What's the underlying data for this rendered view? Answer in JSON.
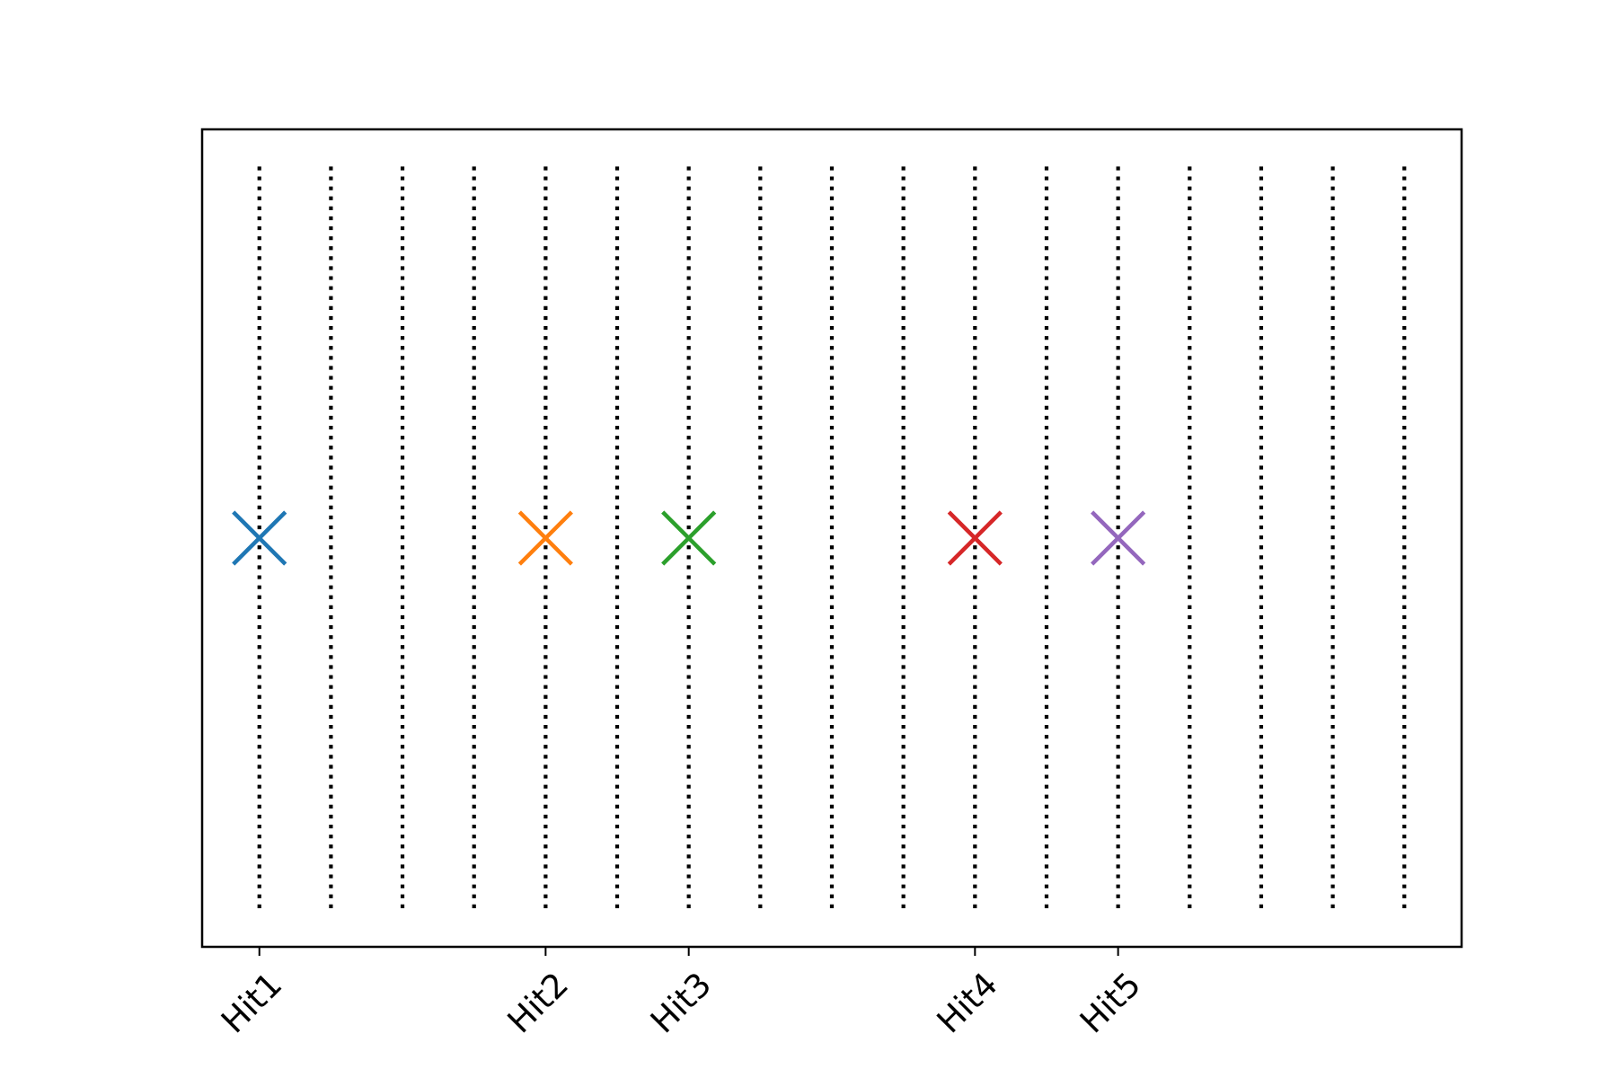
{
  "chart_data": {
    "type": "scatter",
    "title": "",
    "xlabel": "",
    "ylabel": "",
    "grid": false,
    "xlim": [
      -0.8,
      16.8
    ],
    "ylim": [
      -0.055,
      0.055
    ],
    "show_yticks": false,
    "vlines": {
      "x": [
        0,
        1,
        2,
        3,
        4,
        5,
        6,
        7,
        8,
        9,
        10,
        11,
        12,
        13,
        14,
        15,
        16
      ],
      "ymin": -0.05,
      "ymax": 0.05,
      "style": "dotted",
      "color": "#000000"
    },
    "points": [
      {
        "label": "Hit1",
        "x": 0,
        "y": 0,
        "marker": "x",
        "color": "#1f77b4"
      },
      {
        "label": "Hit2",
        "x": 4,
        "y": 0,
        "marker": "x",
        "color": "#ff7f0e"
      },
      {
        "label": "Hit3",
        "x": 6,
        "y": 0,
        "marker": "x",
        "color": "#2ca02c"
      },
      {
        "label": "Hit4",
        "x": 10,
        "y": 0,
        "marker": "x",
        "color": "#d62728"
      },
      {
        "label": "Hit5",
        "x": 12,
        "y": 0,
        "marker": "x",
        "color": "#9467bd"
      }
    ],
    "xticks": [
      {
        "x": 0,
        "label": "Hit1"
      },
      {
        "x": 4,
        "label": "Hit2"
      },
      {
        "x": 6,
        "label": "Hit3"
      },
      {
        "x": 10,
        "label": "Hit4"
      },
      {
        "x": 12,
        "label": "Hit5"
      }
    ],
    "xtick_rotation_deg": 45
  }
}
